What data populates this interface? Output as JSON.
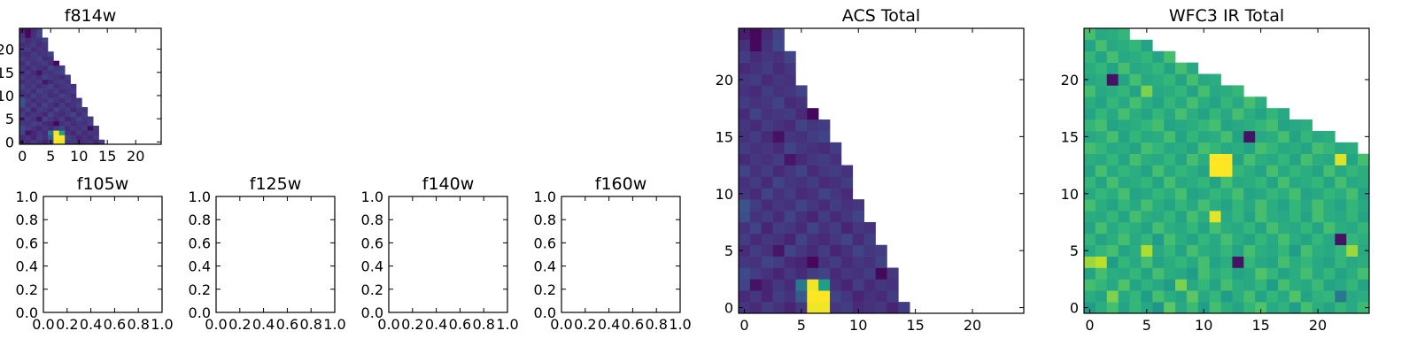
{
  "figure": {
    "layout": "grid of 7 panels"
  },
  "chart_data": [
    {
      "id": "f814w",
      "type": "heatmap",
      "title": "f814w",
      "xlim": [
        -0.5,
        24.5
      ],
      "ylim": [
        -0.5,
        24.5
      ],
      "xticks": [
        0,
        5,
        10,
        15,
        20
      ],
      "yticks": [
        0,
        5,
        10,
        15,
        20
      ],
      "colormap": "viridis",
      "vmin": 0,
      "vmax": 1,
      "grid_shape": [
        25,
        25
      ],
      "note": "value grid shared with ACS Total (same single filter)",
      "values_ref": "acs"
    },
    {
      "id": "f105w",
      "type": "empty",
      "title": "f105w",
      "xlim": [
        0,
        1
      ],
      "ylim": [
        0,
        1
      ],
      "xticks": [
        "0.0",
        "0.2",
        "0.4",
        "0.6",
        "0.8",
        "1.0"
      ],
      "yticks": [
        "0.0",
        "0.2",
        "0.4",
        "0.6",
        "0.8",
        "1.0"
      ]
    },
    {
      "id": "f125w",
      "type": "empty",
      "title": "f125w",
      "xlim": [
        0,
        1
      ],
      "ylim": [
        0,
        1
      ],
      "xticks": [
        "0.0",
        "0.2",
        "0.4",
        "0.6",
        "0.8",
        "1.0"
      ],
      "yticks": [
        "0.0",
        "0.2",
        "0.4",
        "0.6",
        "0.8",
        "1.0"
      ]
    },
    {
      "id": "f140w",
      "type": "empty",
      "title": "f140w",
      "xlim": [
        0,
        1
      ],
      "ylim": [
        0,
        1
      ],
      "xticks": [
        "0.0",
        "0.2",
        "0.4",
        "0.6",
        "0.8",
        "1.0"
      ],
      "yticks": [
        "0.0",
        "0.2",
        "0.4",
        "0.6",
        "0.8",
        "1.0"
      ]
    },
    {
      "id": "f160w",
      "type": "empty",
      "title": "f160w",
      "xlim": [
        0,
        1
      ],
      "ylim": [
        0,
        1
      ],
      "xticks": [
        "0.0",
        "0.2",
        "0.4",
        "0.6",
        "0.8",
        "1.0"
      ],
      "yticks": [
        "0.0",
        "0.2",
        "0.4",
        "0.6",
        "0.8",
        "1.0"
      ]
    },
    {
      "id": "acs",
      "type": "heatmap",
      "title": "ACS Total",
      "xlim": [
        -0.5,
        24.5
      ],
      "ylim": [
        -0.5,
        24.5
      ],
      "xticks": [
        0,
        5,
        10,
        15,
        20
      ],
      "yticks": [
        0,
        5,
        10,
        15,
        20
      ],
      "colormap": "viridis",
      "vmin": 0,
      "vmax": 1,
      "grid_shape": [
        25,
        25
      ],
      "row_lengths": [
        15,
        14,
        14,
        14,
        13,
        13,
        12,
        12,
        11,
        11,
        10,
        10,
        10,
        9,
        9,
        8,
        8,
        7,
        6,
        6,
        5,
        5,
        5,
        4,
        4
      ],
      "values": [
        [
          0.15,
          0.12,
          0.18,
          0.14,
          0.1,
          0.16,
          0.98,
          0.98,
          0.16,
          0.18,
          0.12,
          0.14,
          0.16,
          0.1,
          0.18
        ],
        [
          0.12,
          0.16,
          0.1,
          0.18,
          0.14,
          0.28,
          1.0,
          1.0,
          0.2,
          0.16,
          0.1,
          0.14,
          0.12,
          0.18
        ],
        [
          0.2,
          0.05,
          0.1,
          0.16,
          0.12,
          0.4,
          0.98,
          0.56,
          0.14,
          0.1,
          0.18,
          0.12,
          0.16,
          0.14
        ],
        [
          0.22,
          0.18,
          0.14,
          0.1,
          0.16,
          0.12,
          0.18,
          0.2,
          0.12,
          0.16,
          0.14,
          0.18,
          0.02,
          0.16
        ],
        [
          0.16,
          0.14,
          0.2,
          0.18,
          0.12,
          0.1,
          0.02,
          0.14,
          0.18,
          0.12,
          0.16,
          0.14,
          0.2
        ],
        [
          0.12,
          0.18,
          0.14,
          0.06,
          0.2,
          0.16,
          0.12,
          0.18,
          0.1,
          0.14,
          0.2,
          0.16,
          0.18
        ],
        [
          0.18,
          0.12,
          0.16,
          0.14,
          0.1,
          0.2,
          0.14,
          0.12,
          0.16,
          0.2,
          0.12,
          0.18
        ],
        [
          0.14,
          0.2,
          0.1,
          0.18,
          0.16,
          0.12,
          0.2,
          0.14,
          0.18,
          0.1,
          0.16,
          0.14
        ],
        [
          0.24,
          0.14,
          0.18,
          0.12,
          0.2,
          0.14,
          0.1,
          0.18,
          0.12,
          0.16,
          0.2
        ],
        [
          0.26,
          0.18,
          0.12,
          0.16,
          0.14,
          0.2,
          0.16,
          0.12,
          0.18,
          0.14,
          0.16
        ],
        [
          0.16,
          0.12,
          0.2,
          0.14,
          0.18,
          0.12,
          0.14,
          0.2,
          0.16,
          0.12
        ],
        [
          0.14,
          0.18,
          0.12,
          0.2,
          0.16,
          0.14,
          0.18,
          0.12,
          0.14,
          0.18
        ],
        [
          0.2,
          0.14,
          0.18,
          0.12,
          0.16,
          0.2,
          0.12,
          0.16,
          0.18,
          0.14
        ],
        [
          0.12,
          0.16,
          0.14,
          0.18,
          0.06,
          0.12,
          0.16,
          0.18,
          0.14
        ],
        [
          0.18,
          0.14,
          0.16,
          0.12,
          0.2,
          0.16,
          0.14,
          0.12,
          0.18
        ],
        [
          0.14,
          0.18,
          0.12,
          0.05,
          0.16,
          0.14,
          0.18,
          0.2
        ],
        [
          0.16,
          0.12,
          0.18,
          0.14,
          0.12,
          0.2,
          0.16,
          0.18
        ],
        [
          0.12,
          0.2,
          0.14,
          0.16,
          0.18,
          0.12,
          0.02
        ],
        [
          0.18,
          0.14,
          0.16,
          0.2,
          0.12,
          0.14
        ],
        [
          0.14,
          0.12,
          0.18,
          0.14,
          0.16,
          0.2
        ],
        [
          0.16,
          0.18,
          0.12,
          0.16,
          0.14
        ],
        [
          0.12,
          0.14,
          0.18,
          0.12,
          0.16
        ],
        [
          0.18,
          0.12,
          0.16,
          0.14,
          0.2
        ],
        [
          0.14,
          0.02,
          0.14,
          0.22
        ],
        [
          0.08,
          0.02,
          0.12,
          0.2
        ]
      ]
    },
    {
      "id": "wfc3",
      "type": "heatmap",
      "title": "WFC3 IR Total",
      "xlim": [
        -0.5,
        24.5
      ],
      "ylim": [
        -0.5,
        24.5
      ],
      "xticks": [
        0,
        5,
        10,
        15,
        20
      ],
      "yticks": [
        0,
        5,
        10,
        15,
        20
      ],
      "colormap": "viridis",
      "vmin": 0,
      "vmax": 1,
      "grid_shape": [
        25,
        25
      ],
      "row_lengths": [
        25,
        25,
        25,
        25,
        25,
        25,
        25,
        25,
        25,
        25,
        25,
        25,
        25,
        25,
        24,
        22,
        20,
        18,
        16,
        14,
        12,
        10,
        8,
        6,
        4
      ],
      "values": [
        [
          0.55,
          0.62,
          0.7,
          0.58,
          0.66,
          0.6,
          0.52,
          0.74,
          0.6,
          0.68,
          0.56,
          0.7,
          0.62,
          0.58,
          0.66,
          0.72,
          0.6,
          0.64,
          0.55,
          0.7,
          0.62,
          0.58,
          0.66,
          0.6,
          0.68
        ],
        [
          0.62,
          0.58,
          0.8,
          0.6,
          0.66,
          0.55,
          0.7,
          0.62,
          0.58,
          0.74,
          0.6,
          0.66,
          0.55,
          0.62,
          0.7,
          0.58,
          0.66,
          0.6,
          0.72,
          0.58,
          0.64,
          0.66,
          0.4,
          0.6,
          0.62
        ],
        [
          0.7,
          0.66,
          0.6,
          0.72,
          0.58,
          0.64,
          0.6,
          0.55,
          0.8,
          0.6,
          0.66,
          0.58,
          0.7,
          0.62,
          0.6,
          0.66,
          0.55,
          0.7,
          0.62,
          0.6,
          0.68,
          0.58,
          0.6,
          0.66,
          0.58
        ],
        [
          0.58,
          0.7,
          0.62,
          0.6,
          0.66,
          0.58,
          0.7,
          0.62,
          0.6,
          0.55,
          0.7,
          0.62,
          0.66,
          0.58,
          0.6,
          0.72,
          0.66,
          0.58,
          0.62,
          0.7,
          0.6,
          0.66,
          0.58,
          0.62,
          0.7
        ],
        [
          0.85,
          0.9,
          0.55,
          0.66,
          0.6,
          0.7,
          0.58,
          0.62,
          0.66,
          0.6,
          0.7,
          0.58,
          0.62,
          0.05,
          0.66,
          0.6,
          0.58,
          0.7,
          0.62,
          0.66,
          0.6,
          0.58,
          0.66,
          0.6,
          0.62
        ],
        [
          0.6,
          0.66,
          0.7,
          0.58,
          0.62,
          0.88,
          0.6,
          0.66,
          0.58,
          0.7,
          0.62,
          0.6,
          0.66,
          0.58,
          0.7,
          0.62,
          0.6,
          0.66,
          0.55,
          0.7,
          0.62,
          0.6,
          0.66,
          0.85,
          0.6
        ],
        [
          0.66,
          0.58,
          0.62,
          0.7,
          0.6,
          0.66,
          0.55,
          0.7,
          0.62,
          0.58,
          0.66,
          0.6,
          0.7,
          0.62,
          0.58,
          0.66,
          0.6,
          0.7,
          0.62,
          0.58,
          0.66,
          0.6,
          0.05,
          0.66,
          0.62
        ],
        [
          0.58,
          0.7,
          0.6,
          0.66,
          0.62,
          0.58,
          0.7,
          0.62,
          0.6,
          0.66,
          0.58,
          0.7,
          0.62,
          0.6,
          0.66,
          0.58,
          0.7,
          0.62,
          0.6,
          0.66,
          0.58,
          0.7,
          0.62,
          0.6,
          0.66
        ],
        [
          0.62,
          0.6,
          0.66,
          0.58,
          0.7,
          0.62,
          0.6,
          0.66,
          0.58,
          0.7,
          0.62,
          0.96,
          0.6,
          0.66,
          0.58,
          0.7,
          0.62,
          0.6,
          0.66,
          0.58,
          0.7,
          0.62,
          0.6,
          0.66,
          0.58
        ],
        [
          0.7,
          0.62,
          0.58,
          0.66,
          0.6,
          0.7,
          0.62,
          0.58,
          0.66,
          0.6,
          0.7,
          0.62,
          0.58,
          0.66,
          0.6,
          0.7,
          0.62,
          0.58,
          0.66,
          0.6,
          0.7,
          0.62,
          0.58,
          0.66,
          0.6
        ],
        [
          0.6,
          0.66,
          0.62,
          0.7,
          0.58,
          0.6,
          0.66,
          0.62,
          0.7,
          0.58,
          0.6,
          0.66,
          0.62,
          0.7,
          0.58,
          0.6,
          0.66,
          0.62,
          0.7,
          0.58,
          0.6,
          0.66,
          0.62,
          0.7,
          0.58
        ],
        [
          0.66,
          0.58,
          0.7,
          0.6,
          0.62,
          0.66,
          0.58,
          0.7,
          0.6,
          0.62,
          0.66,
          0.58,
          0.7,
          0.6,
          0.62,
          0.66,
          0.58,
          0.7,
          0.6,
          0.62,
          0.66,
          0.58,
          0.7,
          0.6,
          0.62
        ],
        [
          0.58,
          0.7,
          0.6,
          0.66,
          0.62,
          0.58,
          0.7,
          0.6,
          0.66,
          0.62,
          0.58,
          1.0,
          1.0,
          0.66,
          0.62,
          0.58,
          0.7,
          0.6,
          0.66,
          0.62,
          0.58,
          0.7,
          0.6,
          0.66,
          0.62
        ],
        [
          0.62,
          0.6,
          0.66,
          0.58,
          0.7,
          0.62,
          0.6,
          0.66,
          0.58,
          0.7,
          0.62,
          1.0,
          1.0,
          0.58,
          0.7,
          0.62,
          0.6,
          0.66,
          0.58,
          0.7,
          0.62,
          0.6,
          0.95,
          0.58,
          0.7
        ],
        [
          0.7,
          0.66,
          0.6,
          0.62,
          0.58,
          0.7,
          0.66,
          0.6,
          0.62,
          0.58,
          0.7,
          0.66,
          0.6,
          0.62,
          0.58,
          0.7,
          0.66,
          0.6,
          0.62,
          0.58,
          0.7,
          0.66,
          0.6,
          0.62
        ],
        [
          0.6,
          0.62,
          0.7,
          0.58,
          0.66,
          0.6,
          0.62,
          0.7,
          0.58,
          0.66,
          0.6,
          0.62,
          0.7,
          0.58,
          0.05,
          0.6,
          0.62,
          0.7,
          0.58,
          0.66,
          0.6,
          0.62
        ],
        [
          0.66,
          0.7,
          0.58,
          0.6,
          0.62,
          0.66,
          0.7,
          0.58,
          0.6,
          0.62,
          0.66,
          0.7,
          0.58,
          0.6,
          0.62,
          0.66,
          0.7,
          0.58,
          0.6,
          0.62
        ],
        [
          0.58,
          0.66,
          0.6,
          0.7,
          0.62,
          0.58,
          0.66,
          0.6,
          0.7,
          0.62,
          0.58,
          0.66,
          0.6,
          0.7,
          0.62,
          0.58,
          0.66,
          0.6
        ],
        [
          0.62,
          0.58,
          0.66,
          0.6,
          0.7,
          0.62,
          0.58,
          0.66,
          0.6,
          0.7,
          0.62,
          0.58,
          0.66,
          0.6,
          0.7,
          0.62
        ],
        [
          0.7,
          0.6,
          0.62,
          0.66,
          0.58,
          0.8,
          0.6,
          0.62,
          0.66,
          0.58,
          0.7,
          0.6,
          0.62,
          0.66
        ],
        [
          0.6,
          0.62,
          0.05,
          0.58,
          0.7,
          0.6,
          0.62,
          0.66,
          0.58,
          0.7,
          0.6,
          0.62
        ],
        [
          0.62,
          0.66,
          0.58,
          0.7,
          0.6,
          0.62,
          0.66,
          0.58,
          0.7,
          0.6
        ],
        [
          0.66,
          0.58,
          0.7,
          0.6,
          0.62,
          0.66,
          0.58,
          0.7
        ],
        [
          0.58,
          0.7,
          0.6,
          0.62,
          0.66,
          0.58
        ],
        [
          0.7,
          0.6,
          0.62,
          0.66
        ]
      ]
    }
  ]
}
